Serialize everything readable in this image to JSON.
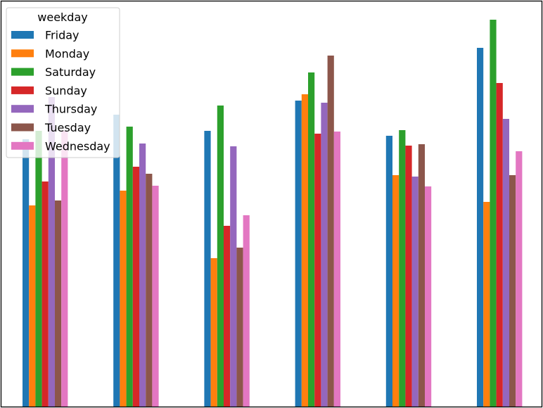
{
  "chart_data": {
    "type": "bar",
    "categories": [
      "",
      "",
      "",
      "",
      "",
      ""
    ],
    "legend": {
      "title": "weekday",
      "placement": "upper-left"
    },
    "grid": false,
    "ylim": [
      0,
      550
    ],
    "series": [
      {
        "name": "Friday",
        "color": "#1f77b4",
        "values": [
          380,
          415,
          392,
          435,
          385,
          510
        ]
      },
      {
        "name": "Monday",
        "color": "#ff7f0e",
        "values": [
          286,
          307,
          211,
          444,
          329,
          291
        ]
      },
      {
        "name": "Saturday",
        "color": "#2ca02c",
        "values": [
          392,
          398,
          428,
          475,
          393,
          550
        ]
      },
      {
        "name": "Sunday",
        "color": "#d62728",
        "values": [
          320,
          341,
          257,
          388,
          371,
          460
        ]
      },
      {
        "name": "Thursday",
        "color": "#9467bd",
        "values": [
          440,
          374,
          370,
          432,
          327,
          409
        ]
      },
      {
        "name": "Tuesday",
        "color": "#8c564b",
        "values": [
          293,
          331,
          226,
          499,
          373,
          329
        ]
      },
      {
        "name": "Wednesday",
        "color": "#e377c2",
        "values": [
          392,
          314,
          272,
          391,
          313,
          363
        ]
      }
    ]
  }
}
